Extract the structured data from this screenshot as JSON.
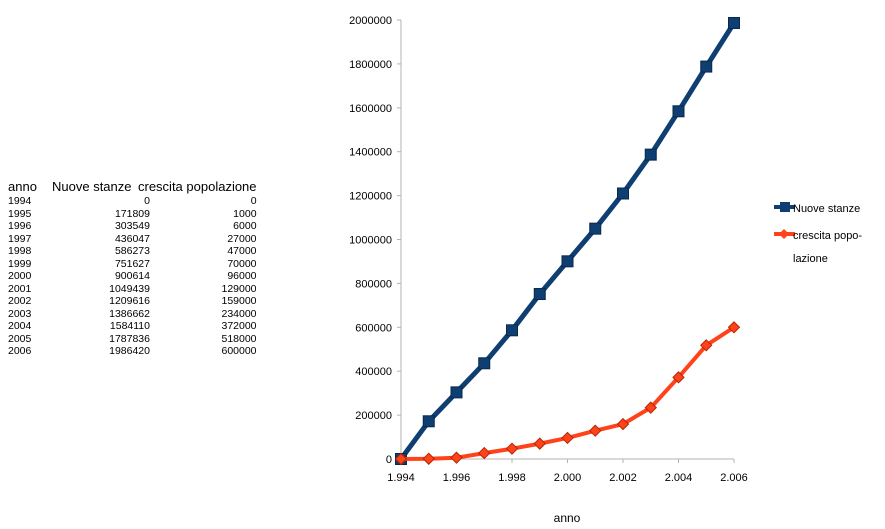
{
  "table": {
    "headers": [
      "anno",
      "Nuove stanze",
      "crescita popolazione"
    ],
    "rows": [
      [
        "1994",
        "0",
        "0"
      ],
      [
        "1995",
        "171809",
        "1000"
      ],
      [
        "1996",
        "303549",
        "6000"
      ],
      [
        "1997",
        "436047",
        "27000"
      ],
      [
        "1998",
        "586273",
        "47000"
      ],
      [
        "1999",
        "751627",
        "70000"
      ],
      [
        "2000",
        "900614",
        "96000"
      ],
      [
        "2001",
        "1049439",
        "129000"
      ],
      [
        "2002",
        "1209616",
        "159000"
      ],
      [
        "2003",
        "1386662",
        "234000"
      ],
      [
        "2004",
        "1584110",
        "372000"
      ],
      [
        "2005",
        "1787836",
        "518000"
      ],
      [
        "2006",
        "1986420",
        "600000"
      ]
    ]
  },
  "chart_data": {
    "type": "line",
    "title": "",
    "xlabel": "anno",
    "ylabel": "",
    "xlim": [
      1994,
      2006
    ],
    "ylim": [
      0,
      2000000
    ],
    "x_ticks": [
      "1.994",
      "1.996",
      "1.998",
      "2.000",
      "2.002",
      "2.004",
      "2.006"
    ],
    "y_ticks": [
      "0",
      "200000",
      "400000",
      "600000",
      "800000",
      "1000000",
      "1200000",
      "1400000",
      "1600000",
      "1800000",
      "2000000"
    ],
    "grid": false,
    "legend": "right",
    "x": [
      1994,
      1995,
      1996,
      1997,
      1998,
      1999,
      2000,
      2001,
      2002,
      2003,
      2004,
      2005,
      2006
    ],
    "series": [
      {
        "name": "Nuove stanze",
        "color": "#0e3e72",
        "marker": "square",
        "values": [
          0,
          171809,
          303549,
          436047,
          586273,
          751627,
          900614,
          1049439,
          1209616,
          1386662,
          1584110,
          1787836,
          1986420
        ]
      },
      {
        "name": "crescita popo-lazione",
        "legend_lines": [
          "crescita popo-",
          "lazione"
        ],
        "color": "#ff4219",
        "marker": "diamond",
        "values": [
          0,
          1000,
          6000,
          27000,
          47000,
          70000,
          96000,
          129000,
          159000,
          234000,
          372000,
          518000,
          600000
        ]
      }
    ]
  }
}
